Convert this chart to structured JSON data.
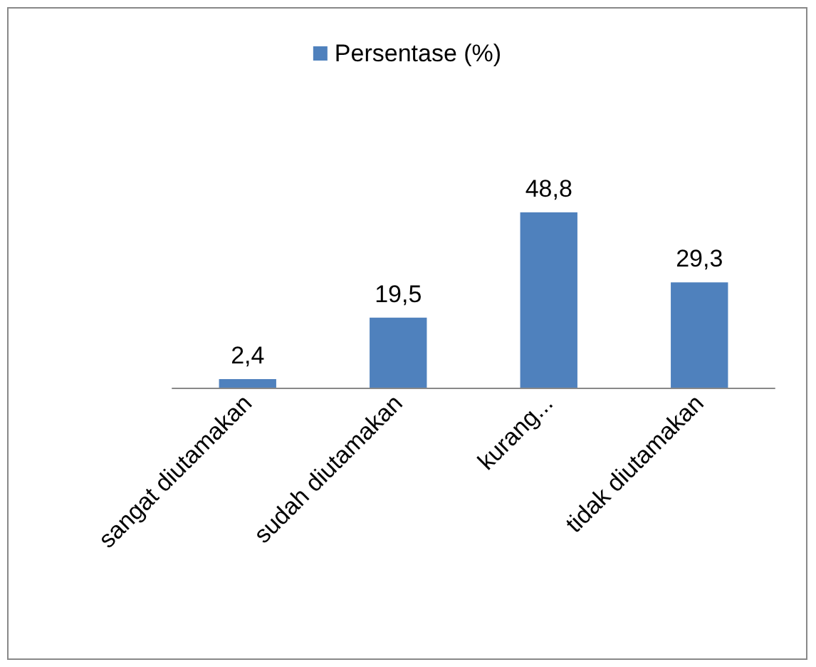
{
  "chart_data": {
    "type": "bar",
    "categories": [
      "sangat diutamakan",
      "sudah diutamakan",
      "kurang...",
      "tidak diutamakan"
    ],
    "series": [
      {
        "name": "Persentase (%)",
        "color": "#4f81bd",
        "values": [
          2.4,
          19.5,
          48.8,
          29.3
        ],
        "value_labels": [
          "2,4",
          "19,5",
          "48,8",
          "29,3"
        ]
      }
    ],
    "legend": "top"
  }
}
